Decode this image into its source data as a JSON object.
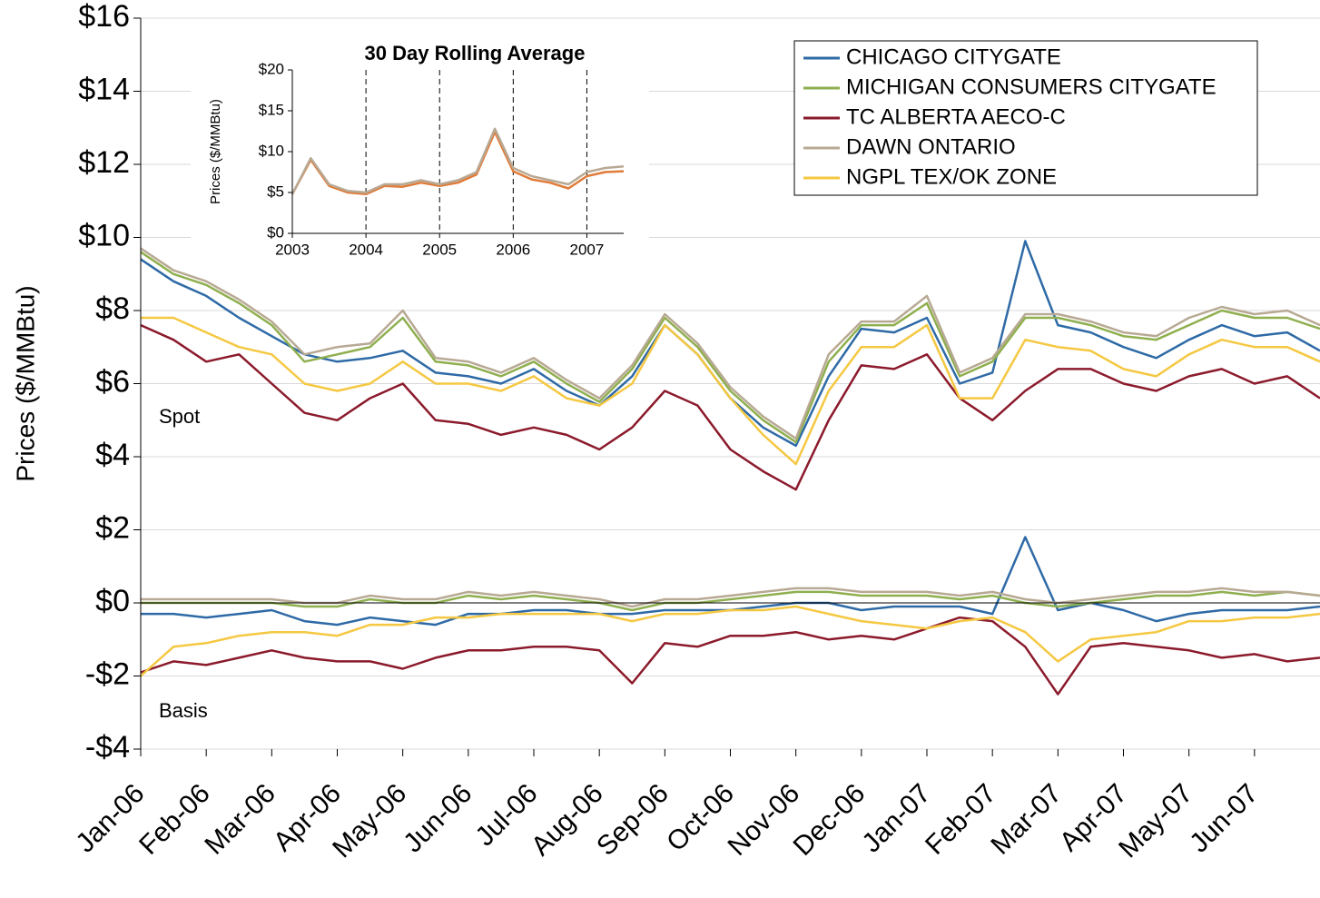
{
  "chart_data": [
    {
      "type": "line",
      "y_label": "Prices ($/MMBtu)",
      "annotations": [
        "Spot",
        "Basis"
      ],
      "x": [
        0,
        0.5,
        1,
        1.5,
        2,
        2.5,
        3,
        3.5,
        4,
        4.5,
        5,
        5.5,
        6,
        6.5,
        7,
        7.5,
        8,
        8.5,
        9,
        9.5,
        10,
        10.5,
        11,
        11.5,
        12,
        12.5,
        13,
        13.5,
        14,
        14.5,
        15,
        15.5,
        16,
        16.5,
        17,
        17.5,
        18
      ],
      "xlim": [
        0,
        18
      ],
      "xticks": [
        {
          "value": 0,
          "label": "Jan-06"
        },
        {
          "value": 1,
          "label": "Feb-06"
        },
        {
          "value": 2,
          "label": "Mar-06"
        },
        {
          "value": 3,
          "label": "Apr-06"
        },
        {
          "value": 4,
          "label": "May-06"
        },
        {
          "value": 5,
          "label": "Jun-06"
        },
        {
          "value": 6,
          "label": "Jul-06"
        },
        {
          "value": 7,
          "label": "Aug-06"
        },
        {
          "value": 8,
          "label": "Sep-06"
        },
        {
          "value": 9,
          "label": "Oct-06"
        },
        {
          "value": 10,
          "label": "Nov-06"
        },
        {
          "value": 11,
          "label": "Dec-06"
        },
        {
          "value": 12,
          "label": "Jan-07"
        },
        {
          "value": 13,
          "label": "Feb-07"
        },
        {
          "value": 14,
          "label": "Mar-07"
        },
        {
          "value": 15,
          "label": "Apr-07"
        },
        {
          "value": 16,
          "label": "May-07"
        },
        {
          "value": 17,
          "label": "Jun-07"
        }
      ],
      "ylim": [
        -4,
        16
      ],
      "yticks": [
        {
          "value": -4,
          "label": "-$4"
        },
        {
          "value": -2,
          "label": "-$2"
        },
        {
          "value": 0,
          "label": "$0"
        },
        {
          "value": 2,
          "label": "$2"
        },
        {
          "value": 4,
          "label": "$4"
        },
        {
          "value": 6,
          "label": "$6"
        },
        {
          "value": 8,
          "label": "$8"
        },
        {
          "value": 10,
          "label": "$10"
        },
        {
          "value": 12,
          "label": "$12"
        },
        {
          "value": 14,
          "label": "$14"
        },
        {
          "value": 16,
          "label": "$16"
        }
      ],
      "grid": true,
      "legend": "top-right",
      "series": [
        {
          "name": "CHICAGO CITYGATE",
          "color": "#2e6aa6",
          "values": [
            9.4,
            8.8,
            8.4,
            7.8,
            7.3,
            6.8,
            6.6,
            6.7,
            6.9,
            6.3,
            6.2,
            6.0,
            6.4,
            5.8,
            5.4,
            6.2,
            7.6,
            6.8,
            5.6,
            4.8,
            4.3,
            6.2,
            7.5,
            7.4,
            7.8,
            6.0,
            6.3,
            9.9,
            7.6,
            7.4,
            7.0,
            6.7,
            7.2,
            7.6,
            7.3,
            7.4,
            6.9
          ]
        },
        {
          "name": "MICHIGAN CONSUMERS CITYGATE",
          "color": "#8faf4f",
          "values": [
            9.6,
            9.0,
            8.7,
            8.2,
            7.6,
            6.6,
            6.8,
            7.0,
            7.8,
            6.6,
            6.5,
            6.2,
            6.6,
            6.0,
            5.5,
            6.4,
            7.8,
            7.0,
            5.8,
            5.0,
            4.4,
            6.6,
            7.6,
            7.6,
            8.2,
            6.2,
            6.6,
            7.8,
            7.8,
            7.6,
            7.3,
            7.2,
            7.6,
            8.0,
            7.8,
            7.8,
            7.5
          ]
        },
        {
          "name": "TC ALBERTA AECO-C",
          "color": "#8b1a2b",
          "values": [
            7.6,
            7.2,
            6.6,
            6.8,
            6.0,
            5.2,
            5.0,
            5.6,
            6.0,
            5.0,
            4.9,
            4.6,
            4.8,
            4.6,
            4.2,
            4.8,
            5.8,
            5.4,
            4.2,
            3.6,
            3.1,
            5.0,
            6.5,
            6.4,
            6.8,
            5.6,
            5.0,
            5.8,
            6.4,
            6.4,
            6.0,
            5.8,
            6.2,
            6.4,
            6.0,
            6.2,
            5.6
          ]
        },
        {
          "name": "DAWN ONTARIO",
          "color": "#b8a994",
          "values": [
            9.7,
            9.1,
            8.8,
            8.3,
            7.7,
            6.8,
            7.0,
            7.1,
            8.0,
            6.7,
            6.6,
            6.3,
            6.7,
            6.1,
            5.6,
            6.5,
            7.9,
            7.1,
            5.9,
            5.1,
            4.5,
            6.8,
            7.7,
            7.7,
            8.4,
            6.3,
            6.7,
            7.9,
            7.9,
            7.7,
            7.4,
            7.3,
            7.8,
            8.1,
            7.9,
            8.0,
            7.6
          ]
        },
        {
          "name": "NGPL TEX/OK ZONE",
          "color": "#f5c842",
          "values": [
            7.8,
            7.8,
            7.4,
            7.0,
            6.8,
            6.0,
            5.8,
            6.0,
            6.6,
            6.0,
            6.0,
            5.8,
            6.2,
            5.6,
            5.4,
            6.0,
            7.6,
            6.8,
            5.6,
            4.6,
            3.8,
            5.8,
            7.0,
            7.0,
            7.6,
            5.6,
            5.6,
            7.2,
            7.0,
            6.9,
            6.4,
            6.2,
            6.8,
            7.2,
            7.0,
            7.0,
            6.6
          ]
        },
        {
          "color": "#2e6aa6",
          "values": [
            -0.3,
            -0.3,
            -0.4,
            -0.3,
            -0.2,
            -0.5,
            -0.6,
            -0.4,
            -0.5,
            -0.6,
            -0.3,
            -0.3,
            -0.2,
            -0.2,
            -0.3,
            -0.3,
            -0.2,
            -0.2,
            -0.2,
            -0.1,
            0.0,
            0.0,
            -0.2,
            -0.1,
            -0.1,
            -0.1,
            -0.3,
            1.8,
            -0.2,
            0.0,
            -0.2,
            -0.5,
            -0.3,
            -0.2,
            -0.2,
            -0.2,
            -0.1
          ]
        },
        {
          "color": "#8faf4f",
          "values": [
            0.0,
            0.0,
            0.0,
            0.0,
            0.0,
            -0.1,
            -0.1,
            0.1,
            0.0,
            0.0,
            0.2,
            0.1,
            0.2,
            0.1,
            0.0,
            -0.2,
            0.0,
            0.0,
            0.1,
            0.2,
            0.3,
            0.3,
            0.2,
            0.2,
            0.2,
            0.1,
            0.2,
            0.0,
            -0.1,
            0.0,
            0.1,
            0.2,
            0.2,
            0.3,
            0.2,
            0.3,
            0.2
          ]
        },
        {
          "color": "#8b1a2b",
          "values": [
            -1.9,
            -1.6,
            -1.7,
            -1.5,
            -1.3,
            -1.5,
            -1.6,
            -1.6,
            -1.8,
            -1.5,
            -1.3,
            -1.3,
            -1.2,
            -1.2,
            -1.3,
            -2.2,
            -1.1,
            -1.2,
            -0.9,
            -0.9,
            -0.8,
            -1.0,
            -0.9,
            -1.0,
            -0.7,
            -0.4,
            -0.5,
            -1.2,
            -2.5,
            -1.2,
            -1.1,
            -1.2,
            -1.3,
            -1.5,
            -1.4,
            -1.6,
            -1.5
          ]
        },
        {
          "color": "#b8a994",
          "values": [
            0.1,
            0.1,
            0.1,
            0.1,
            0.1,
            0.0,
            0.0,
            0.2,
            0.1,
            0.1,
            0.3,
            0.2,
            0.3,
            0.2,
            0.1,
            -0.1,
            0.1,
            0.1,
            0.2,
            0.3,
            0.4,
            0.4,
            0.3,
            0.3,
            0.3,
            0.2,
            0.3,
            0.1,
            0.0,
            0.1,
            0.2,
            0.3,
            0.3,
            0.4,
            0.3,
            0.3,
            0.2
          ]
        },
        {
          "color": "#f5c842",
          "values": [
            -2.0,
            -1.2,
            -1.1,
            -0.9,
            -0.8,
            -0.8,
            -0.9,
            -0.6,
            -0.6,
            -0.4,
            -0.4,
            -0.3,
            -0.3,
            -0.3,
            -0.3,
            -0.5,
            -0.3,
            -0.3,
            -0.2,
            -0.2,
            -0.1,
            -0.3,
            -0.5,
            -0.6,
            -0.7,
            -0.5,
            -0.4,
            -0.8,
            -1.6,
            -1.0,
            -0.9,
            -0.8,
            -0.5,
            -0.5,
            -0.4,
            -0.4,
            -0.3
          ]
        }
      ]
    },
    {
      "type": "line",
      "title": "30 Day Rolling Average",
      "y_label": "Prices ($/MMBtu)",
      "x": [
        2003,
        2003.25,
        2003.5,
        2003.75,
        2004,
        2004.25,
        2004.5,
        2004.75,
        2005,
        2005.25,
        2005.5,
        2005.75,
        2006,
        2006.25,
        2006.5,
        2006.75,
        2007,
        2007.25,
        2007.5
      ],
      "xlim": [
        2003,
        2007.5
      ],
      "xticks": [
        2003,
        2004,
        2005,
        2006,
        2007
      ],
      "vlines": [
        2004,
        2005,
        2006,
        2007
      ],
      "ylim": [
        0,
        20
      ],
      "yticks": [
        {
          "value": 0,
          "label": "$0"
        },
        {
          "value": 5,
          "label": "$5"
        },
        {
          "value": 10,
          "label": "$10"
        },
        {
          "value": 15,
          "label": "$15"
        },
        {
          "value": 20,
          "label": "$20"
        }
      ],
      "series": [
        {
          "color": "#e07b39",
          "values": [
            4.8,
            9.0,
            5.8,
            5.0,
            4.8,
            5.8,
            5.7,
            6.2,
            5.8,
            6.2,
            7.2,
            12.4,
            7.6,
            6.6,
            6.2,
            5.5,
            7.0,
            7.5,
            7.6
          ]
        },
        {
          "color": "#b8a994",
          "values": [
            4.8,
            9.2,
            6.0,
            5.2,
            5.0,
            6.0,
            6.0,
            6.5,
            6.0,
            6.5,
            7.5,
            12.8,
            8.0,
            7.0,
            6.5,
            6.0,
            7.5,
            8.0,
            8.2
          ]
        }
      ]
    }
  ]
}
